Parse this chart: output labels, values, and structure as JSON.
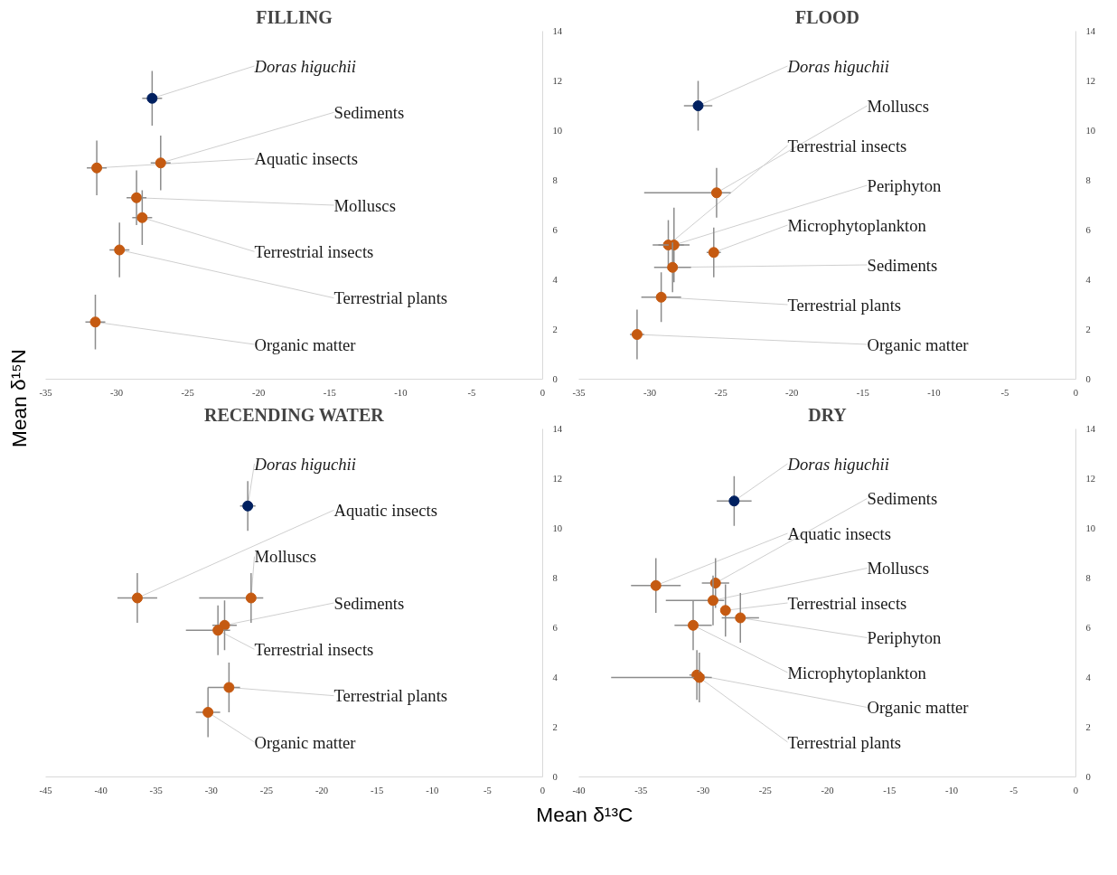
{
  "chart_data": [
    {
      "type": "scatter",
      "title": "FILLING",
      "ylabel": "Mean δ¹⁵N",
      "xlim": [
        -35,
        0
      ],
      "xticks": [
        -35,
        -30,
        -25,
        -20,
        -15,
        -10,
        -5,
        0
      ],
      "ylim": [
        0,
        14
      ],
      "yticks": [
        0,
        2,
        4,
        6,
        8,
        10,
        12,
        14
      ],
      "grid": false,
      "legend": false,
      "marker": "circle",
      "series": [
        {
          "name": "Doras higuchii",
          "color": "#002060",
          "x": [
            -27.5
          ],
          "values": [
            11.3
          ],
          "errors": [
            1.1
          ],
          "xerrors": [
            0.7
          ]
        },
        {
          "name": "Aquatic insects",
          "color": "#c55a11",
          "x": [
            -31.4
          ],
          "values": [
            8.5
          ],
          "errors": [
            1.1
          ],
          "xerrors": [
            0.7
          ]
        },
        {
          "name": "Sediments",
          "color": "#c55a11",
          "x": [
            -26.9
          ],
          "values": [
            8.7
          ],
          "errors": [
            1.1
          ],
          "xerrors": [
            0.7
          ]
        },
        {
          "name": "Molluscs",
          "color": "#c55a11",
          "x": [
            -28.6
          ],
          "values": [
            7.3
          ],
          "errors": [
            1.1
          ],
          "xerrors": [
            0.7
          ]
        },
        {
          "name": "Terrestrial insects",
          "color": "#c55a11",
          "x": [
            -28.2
          ],
          "values": [
            6.5
          ],
          "errors": [
            1.1
          ],
          "xerrors": [
            0.7
          ]
        },
        {
          "name": "Terrestrial plants",
          "color": "#c55a11",
          "x": [
            -29.8
          ],
          "values": [
            5.2
          ],
          "errors": [
            1.1
          ],
          "xerrors": [
            0.7
          ]
        },
        {
          "name": "Organic matter",
          "color": "#c55a11",
          "x": [
            -31.5
          ],
          "values": [
            2.3
          ],
          "errors": [
            1.1
          ],
          "xerrors": [
            0.7
          ]
        }
      ]
    },
    {
      "type": "scatter",
      "title": "FLOOD",
      "xlim": [
        -35,
        0
      ],
      "xticks": [
        -35,
        -30,
        -25,
        -20,
        -15,
        -10,
        -5,
        0
      ],
      "ylim": [
        0,
        14
      ],
      "yticks": [
        0,
        2,
        4,
        6,
        8,
        10,
        12,
        14
      ],
      "grid": false,
      "legend": false,
      "marker": "circle",
      "series": [
        {
          "name": "Doras higuchii",
          "color": "#002060",
          "x": [
            -26.6
          ],
          "values": [
            11.0
          ],
          "errors": [
            1.0
          ],
          "xerrors": [
            1.0
          ]
        },
        {
          "name": "Molluscs",
          "color": "#c55a11",
          "x": [
            -25.3
          ],
          "values": [
            7.5
          ],
          "errors": [
            1.0
          ],
          "xerrors": [
            [
              -30.4,
              -24.3
            ]
          ]
        },
        {
          "name": "Terrestrial insects",
          "color": "#c55a11",
          "x": [
            -28.7
          ],
          "values": [
            5.4
          ],
          "errors": [
            1.0
          ],
          "xerrors": [
            1.1
          ]
        },
        {
          "name": "Periphyton",
          "color": "#c55a11",
          "x": [
            -28.3
          ],
          "values": [
            5.4
          ],
          "errors": [
            1.5
          ],
          "xerrors": [
            1.1
          ]
        },
        {
          "name": "Microphytoplankton",
          "color": "#c55a11",
          "x": [
            -25.5
          ],
          "values": [
            5.1
          ],
          "errors": [
            1.0
          ],
          "xerrors": [
            0.5
          ]
        },
        {
          "name": "Sediments",
          "color": "#c55a11",
          "x": [
            -28.4
          ],
          "values": [
            4.5
          ],
          "errors": [
            1.0
          ],
          "xerrors": [
            1.3
          ]
        },
        {
          "name": "Terrestrial plants",
          "color": "#c55a11",
          "x": [
            -29.2
          ],
          "values": [
            3.3
          ],
          "errors": [
            1.0
          ],
          "xerrors": [
            1.4
          ]
        },
        {
          "name": "Organic matter",
          "color": "#c55a11",
          "x": [
            -30.9
          ],
          "values": [
            1.8
          ],
          "errors": [
            1.0
          ],
          "xerrors": [
            0.5
          ]
        }
      ]
    },
    {
      "type": "scatter",
      "title": "RECENDING WATER",
      "xlabel": "Mean δ¹³C",
      "xlim": [
        -45,
        0
      ],
      "xticks": [
        -45,
        -40,
        -35,
        -30,
        -25,
        -20,
        -15,
        -10,
        -5,
        0
      ],
      "ylim": [
        0,
        14
      ],
      "yticks": [
        0,
        2,
        4,
        6,
        8,
        10,
        12,
        14
      ],
      "grid": false,
      "legend": false,
      "marker": "circle",
      "series": [
        {
          "name": "Doras higuchii",
          "color": "#002060",
          "x": [
            -26.7
          ],
          "values": [
            10.9
          ],
          "errors": [
            1.0
          ],
          "xerrors": [
            0.7
          ]
        },
        {
          "name": "Aquatic insects",
          "color": "#c55a11",
          "x": [
            -36.7
          ],
          "values": [
            7.2
          ],
          "errors": [
            1.0
          ],
          "xerrors": [
            1.8
          ]
        },
        {
          "name": "Molluscs",
          "color": "#c55a11",
          "x": [
            -26.4
          ],
          "values": [
            7.2
          ],
          "errors": [
            1.0
          ],
          "xerrors": [
            [
              -31.1,
              -25.3
            ]
          ]
        },
        {
          "name": "Sediments",
          "color": "#c55a11",
          "x": [
            -28.8
          ],
          "values": [
            6.1
          ],
          "errors": [
            1.0
          ],
          "xerrors": [
            1.1
          ]
        },
        {
          "name": "Terrestrial insects",
          "color": "#c55a11",
          "x": [
            -29.4
          ],
          "values": [
            5.9
          ],
          "errors": [
            1.0
          ],
          "xerrors": [
            [
              -32.3,
              -28.3
            ]
          ]
        },
        {
          "name": "Terrestrial plants",
          "color": "#c55a11",
          "x": [
            -28.4
          ],
          "values": [
            3.6
          ],
          "errors": [
            1.0
          ],
          "xerrors": [
            [
              -30.3,
              -27.4
            ]
          ]
        },
        {
          "name": "Organic matter",
          "color": "#c55a11",
          "x": [
            -30.3
          ],
          "values": [
            2.6
          ],
          "errors": [
            1.0
          ],
          "xerrors": [
            1.1
          ]
        }
      ]
    },
    {
      "type": "scatter",
      "title": "DRY",
      "xlim": [
        -40,
        0
      ],
      "xticks": [
        -40,
        -35,
        -30,
        -25,
        -20,
        -15,
        -10,
        -5,
        0
      ],
      "ylim": [
        0,
        14
      ],
      "yticks": [
        0,
        2,
        4,
        6,
        8,
        10,
        12,
        14
      ],
      "grid": false,
      "legend": false,
      "marker": "circle",
      "series": [
        {
          "name": "Doras higuchii",
          "color": "#002060",
          "x": [
            -27.5
          ],
          "values": [
            11.1
          ],
          "errors": [
            1.0
          ],
          "xerrors": [
            1.4
          ]
        },
        {
          "name": "Sediments",
          "color": "#c55a11",
          "x": [
            -29.0
          ],
          "values": [
            7.8
          ],
          "errors": [
            1.0
          ],
          "xerrors": [
            1.1
          ]
        },
        {
          "name": "Molluscs",
          "color": "#c55a11",
          "x": [
            -29.2
          ],
          "values": [
            7.1
          ],
          "errors": [
            1.0
          ],
          "xerrors": [
            [
              -33.0,
              -28.3
            ]
          ]
        },
        {
          "name": "Aquatic insects",
          "color": "#c55a11",
          "x": [
            -33.8
          ],
          "values": [
            7.7
          ],
          "errors": [
            1.1
          ],
          "xerrors": [
            2.0
          ]
        },
        {
          "name": "Terrestrial insects",
          "color": "#c55a11",
          "x": [
            -28.2
          ],
          "values": [
            6.7
          ],
          "errors": [
            1.05
          ],
          "xerrors": [
            null
          ]
        },
        {
          "name": "Periphyton",
          "color": "#c55a11",
          "x": [
            -27.0
          ],
          "values": [
            6.4
          ],
          "errors": [
            1.0
          ],
          "xerrors": [
            1.5
          ]
        },
        {
          "name": "Microphytoplankton",
          "color": "#c55a11",
          "x": [
            -30.8
          ],
          "values": [
            6.1
          ],
          "errors": [
            1.0
          ],
          "xerrors": [
            1.5
          ]
        },
        {
          "name": "Organic matter",
          "color": "#c55a11",
          "x": [
            -30.5
          ],
          "values": [
            4.1
          ],
          "errors": [
            1.0
          ],
          "xerrors": [
            0.6
          ]
        },
        {
          "name": "Terrestrial plants",
          "color": "#c55a11",
          "x": [
            -30.3
          ],
          "values": [
            4.0
          ],
          "errors": [
            1.0
          ],
          "xerrors": [
            [
              -37.4,
              -29.3
            ]
          ]
        }
      ]
    }
  ]
}
